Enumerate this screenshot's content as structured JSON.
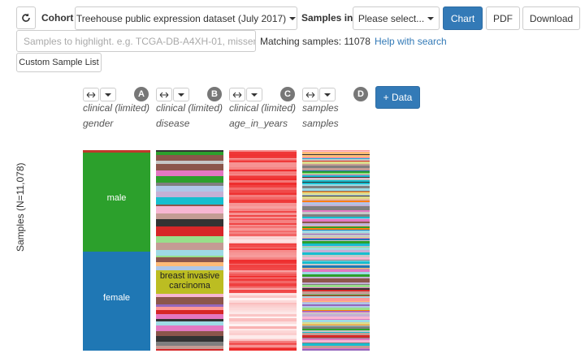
{
  "toolbar": {
    "cohort_label": "Cohort",
    "cohort": "Treehouse public expression dataset (July 2017)",
    "samples_in_label": "Samples in",
    "samples_in": "Please select...",
    "buttons": [
      "Chart",
      "PDF",
      "Download"
    ]
  },
  "search": {
    "placeholder": "Samples to highlight. e.g. TCGA-DB-A4XH-01, missen",
    "matching_label": "Matching samples:",
    "matching_count": 11078,
    "help": "Help with search",
    "custom_list": "Custom Sample List"
  },
  "columns": [
    {
      "letter": "A",
      "source": "clinical (limited)",
      "field": "gender"
    },
    {
      "letter": "B",
      "source": "clinical (limited)",
      "field": "disease"
    },
    {
      "letter": "C",
      "source": "clinical (limited)",
      "field": "age_in_years"
    },
    {
      "letter": "D",
      "source": "samples",
      "field": "samples"
    }
  ],
  "add_data": "+ Data",
  "y_axis_label": "Samples (N=11,078)",
  "annotations": {
    "male": "male",
    "female": "female",
    "disease": "breast invasive carcinoma"
  }
}
